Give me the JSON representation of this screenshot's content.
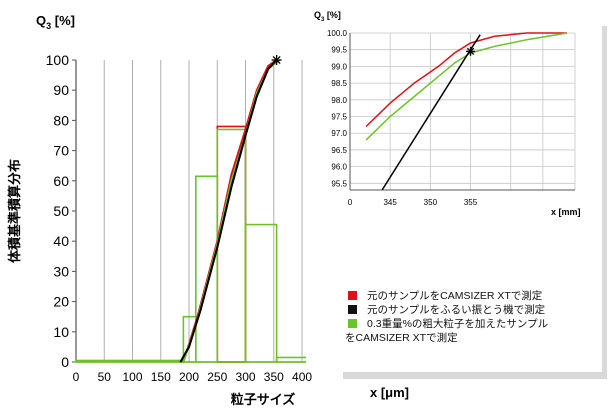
{
  "chart_data": [
    {
      "type": "line",
      "panel": "main",
      "ylabel_q": "Q",
      "ylabel_sub": "3",
      "ylabel_unit": " [%]",
      "ylabel_vertical": "体積基準積算分布",
      "xlabel": "粒子サイズ",
      "xunit": "x [μm]",
      "xticks": [
        0,
        50,
        100,
        150,
        200,
        250,
        300,
        350,
        400
      ],
      "yticks": [
        0,
        10,
        20,
        30,
        40,
        50,
        60,
        70,
        80,
        90,
        100
      ],
      "xlim": [
        0,
        430
      ],
      "ylim": [
        0,
        100
      ],
      "grid": "vertical",
      "series": [
        {
          "color": "#e0101a",
          "x": [
            190,
            215,
            250,
            275,
            300,
            320,
            340,
            355
          ],
          "y": [
            0,
            15,
            40,
            62,
            77,
            90,
            98,
            100
          ]
        },
        {
          "color": "#000000",
          "x": [
            185,
            200,
            220,
            250,
            275,
            300,
            320,
            340,
            355
          ],
          "y": [
            0,
            5,
            17,
            38,
            58,
            75,
            88,
            97,
            100
          ]
        },
        {
          "color": "#6cc328",
          "x": [
            190,
            215,
            250,
            275,
            300,
            320,
            340,
            360
          ],
          "y": [
            0,
            14,
            39,
            60,
            75,
            89,
            97,
            100
          ]
        }
      ],
      "histograms": [
        {
          "color": "#e0101a",
          "bars": [
            {
              "x0": 250,
              "x1": 300,
              "y": 78
            }
          ]
        },
        {
          "color": "#6cc328",
          "bars": [
            {
              "x0": 0,
              "x1": 190,
              "y": 0.5
            },
            {
              "x0": 190,
              "x1": 212,
              "y": 15
            },
            {
              "x0": 212,
              "x1": 250,
              "y": 61.5
            },
            {
              "x0": 250,
              "x1": 300,
              "y": 77
            },
            {
              "x0": 300,
              "x1": 355,
              "y": 45.5
            },
            {
              "x0": 355,
              "x1": 425,
              "y": 1.5
            }
          ]
        }
      ],
      "marker": {
        "x": 355,
        "y": 100
      }
    },
    {
      "type": "line",
      "panel": "inset",
      "ylabel_q": "Q",
      "ylabel_sub": "3",
      "ylabel_unit": " [%]",
      "xunit": "x [mm]",
      "xticks": [
        0,
        345,
        350,
        355
      ],
      "yticks": [
        "95.5",
        "96.0",
        "96.5",
        "97.0",
        "97.5",
        "98.0",
        "98.5",
        "99.0",
        "99.5",
        "100.0"
      ],
      "ylim": [
        95.3,
        100.0
      ],
      "grid": "both",
      "series": [
        {
          "color": "#e0101a",
          "x": [
            342,
            345,
            348,
            351,
            353,
            355,
            358,
            362,
            367
          ],
          "y": [
            97.2,
            97.9,
            98.5,
            99.0,
            99.4,
            99.7,
            99.9,
            100.0,
            100.0
          ]
        },
        {
          "color": "#6cc328",
          "x": [
            342,
            345,
            348,
            351,
            353,
            355,
            358,
            362,
            367
          ],
          "y": [
            96.8,
            97.5,
            98.1,
            98.7,
            99.1,
            99.4,
            99.6,
            99.8,
            100.0
          ]
        },
        {
          "color": "#000000",
          "x": [
            344,
            355,
            356.2
          ],
          "y": [
            95.3,
            99.5,
            99.95
          ]
        }
      ],
      "marker": {
        "x": 355,
        "y": 99.45
      }
    }
  ],
  "legend": {
    "items": [
      {
        "color": "#e0101a",
        "text": "元のサンプルをCAMSIZER XTで測定"
      },
      {
        "color": "#111111",
        "text": "元のサンプルをふるい振とう機で測定"
      },
      {
        "color": "#6cc328",
        "text": "0.3重量%の粗大粒子を加えたサンプル"
      }
    ],
    "continuation": "をCAMSIZER XTで測定"
  }
}
